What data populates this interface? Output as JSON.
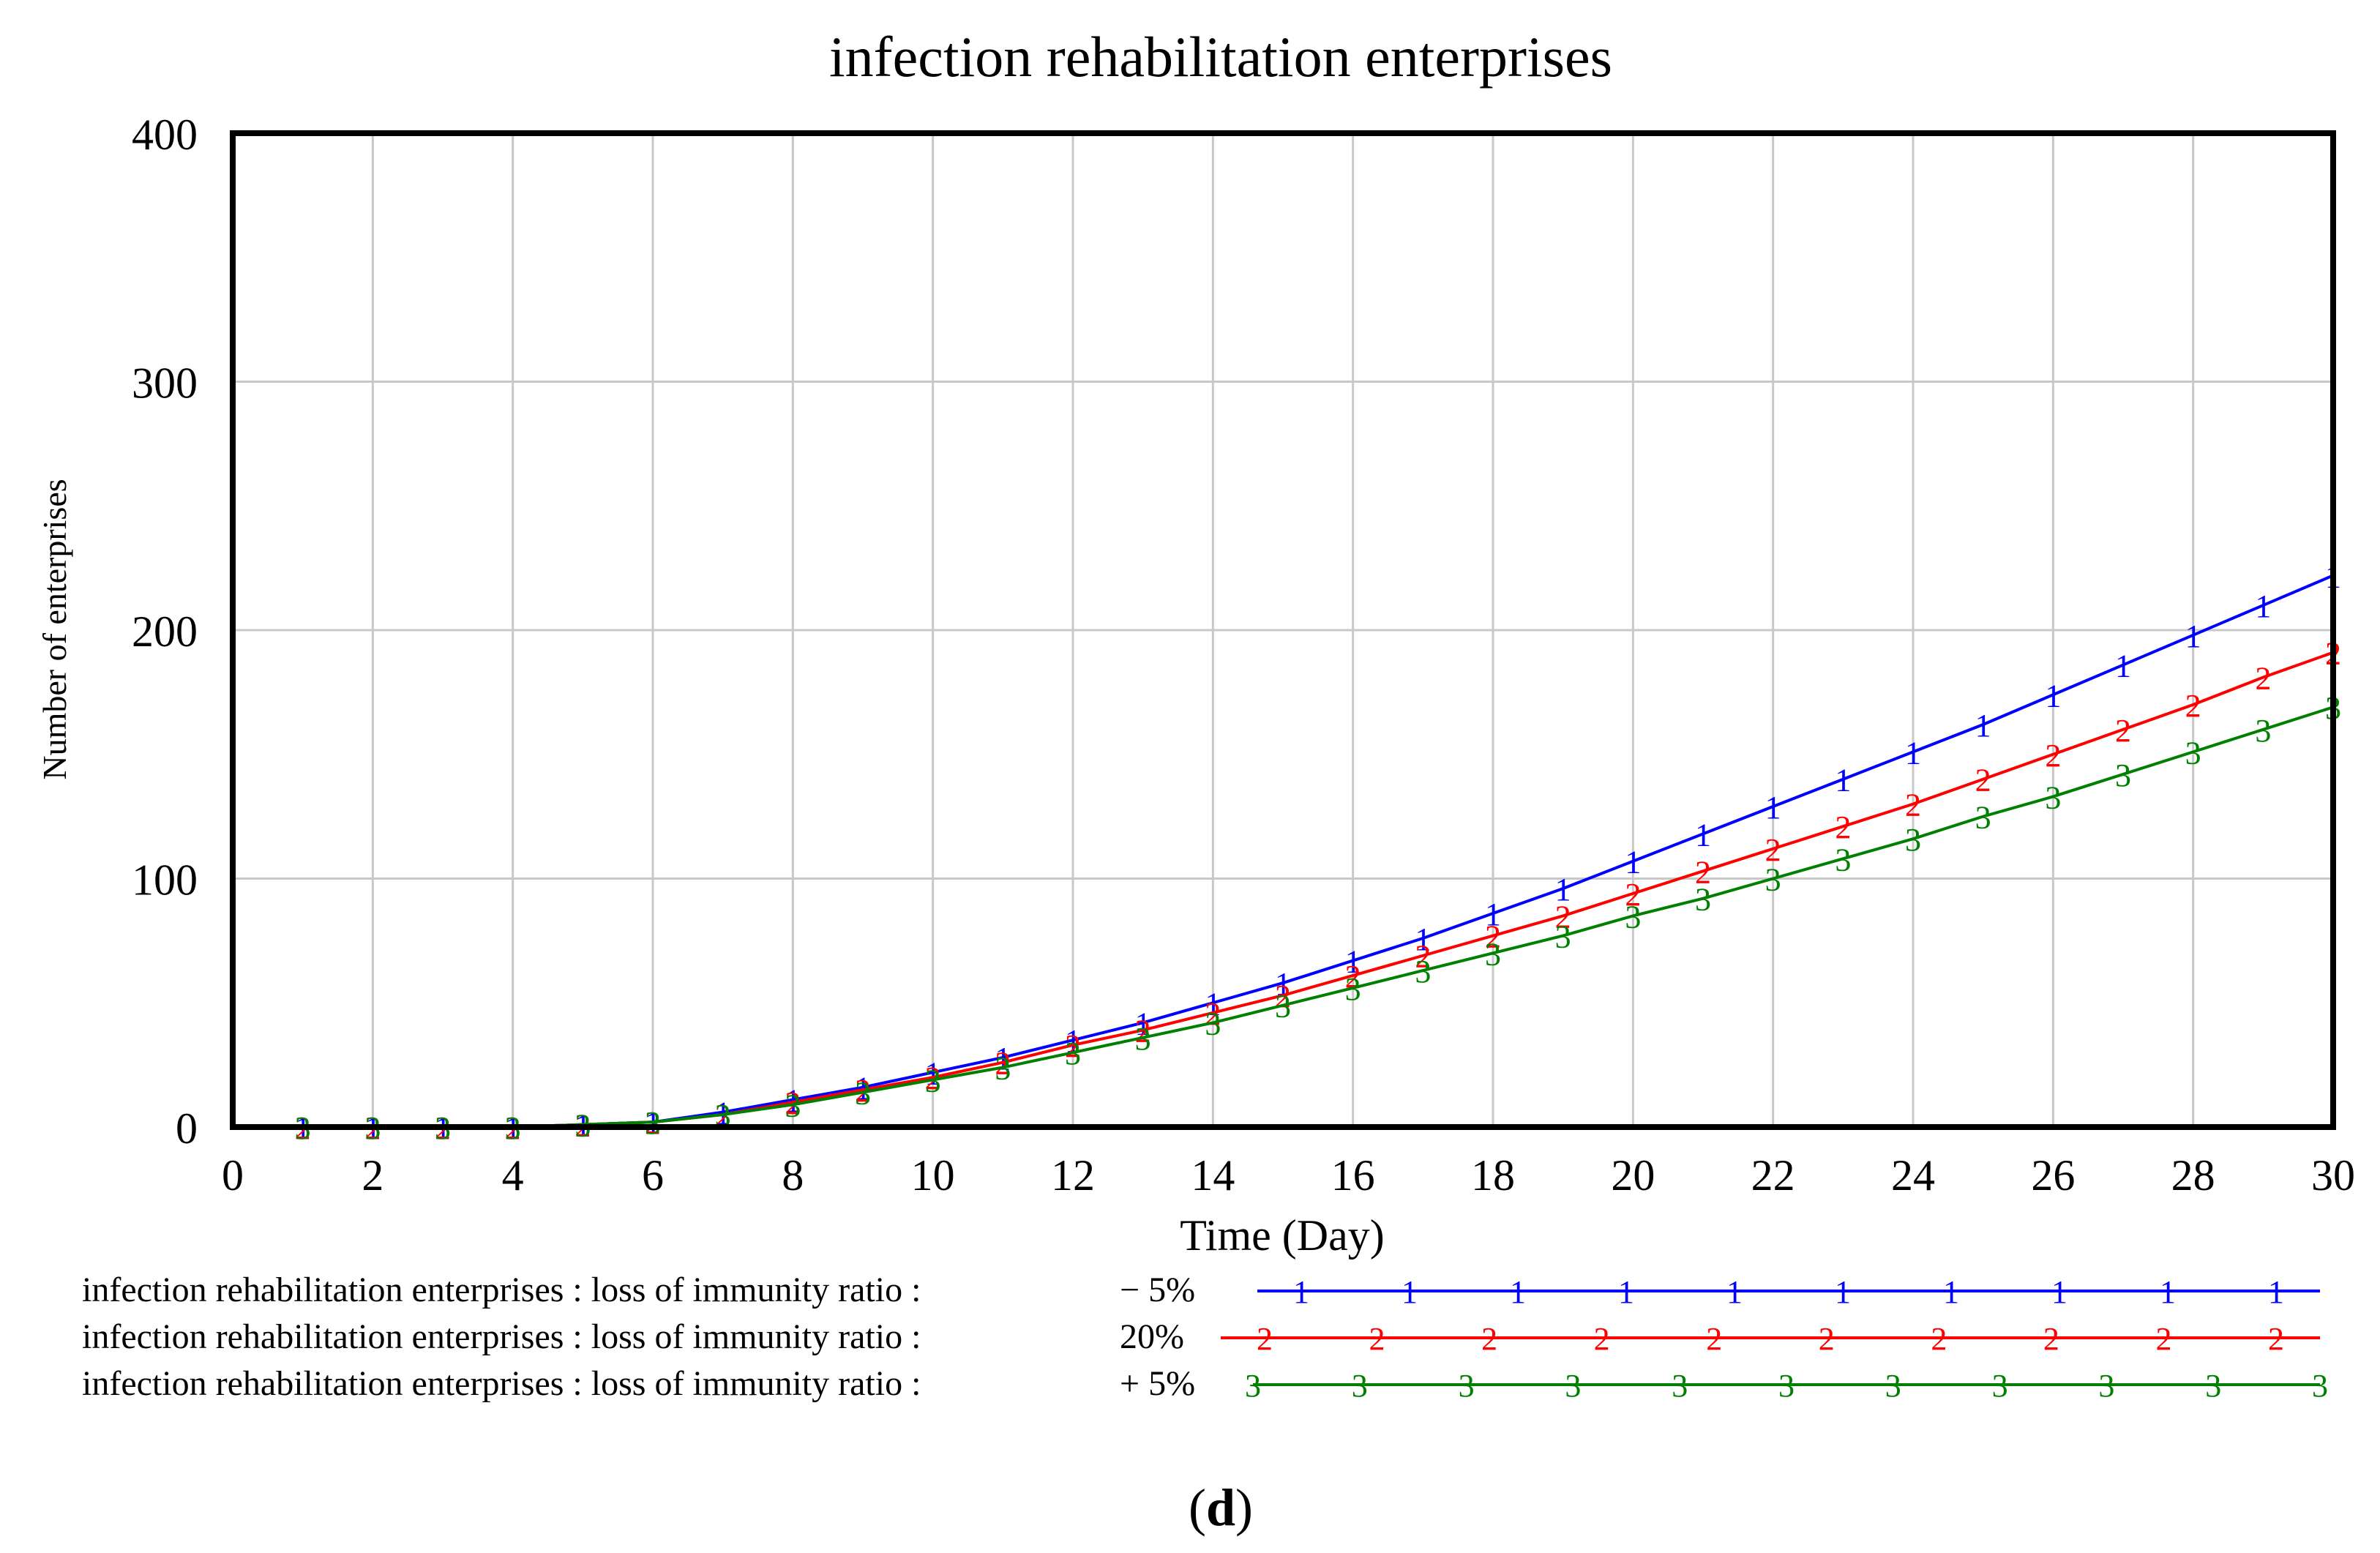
{
  "chart_data": {
    "type": "line",
    "title": "infection rehabilitation enterprises",
    "xlabel": "Time (Day)",
    "ylabel": "Number of enterprises",
    "xlim": [
      0,
      30
    ],
    "ylim": [
      0,
      400
    ],
    "x_ticks": [
      0,
      2,
      4,
      6,
      8,
      10,
      12,
      14,
      16,
      18,
      20,
      22,
      24,
      26,
      28,
      30
    ],
    "y_ticks": [
      0,
      100,
      200,
      300,
      400
    ],
    "grid": true,
    "x": [
      0,
      1,
      2,
      3,
      4,
      5,
      6,
      7,
      8,
      9,
      10,
      11,
      12,
      13,
      14,
      15,
      16,
      17,
      18,
      19,
      20,
      21,
      22,
      23,
      24,
      25,
      26,
      27,
      28,
      29,
      30
    ],
    "series": [
      {
        "name": "infection rehabilitation enterprises : loss of immunity ratio :",
        "setting": "− 5%",
        "marker": "1",
        "color": "#0000ff",
        "values": [
          0,
          0,
          0,
          0,
          0,
          1,
          2,
          6,
          11,
          16,
          22,
          28,
          35,
          42,
          50,
          58,
          67,
          76,
          86,
          96,
          107,
          118,
          129,
          140,
          151,
          162,
          174,
          186,
          198,
          210,
          222
        ]
      },
      {
        "name": "infection rehabilitation enterprises : loss of immunity ratio :",
        "setting": "20%",
        "marker": "2",
        "color": "#ff0000",
        "values": [
          0,
          0,
          0,
          0,
          0,
          1,
          2,
          5,
          10,
          15,
          20,
          26,
          33,
          39,
          46,
          53,
          61,
          69,
          77,
          85,
          94,
          103,
          112,
          121,
          130,
          140,
          150,
          160,
          170,
          181,
          191
        ]
      },
      {
        "name": "infection rehabilitation enterprises : loss of immunity ratio :",
        "setting": "+ 5%",
        "marker": "3",
        "color": "#008000",
        "values": [
          0,
          0,
          0,
          0,
          0,
          1,
          2,
          5,
          9,
          14,
          19,
          24,
          30,
          36,
          42,
          49,
          56,
          63,
          70,
          77,
          85,
          92,
          100,
          108,
          116,
          125,
          133,
          142,
          151,
          160,
          169
        ]
      }
    ]
  },
  "caption": "d"
}
